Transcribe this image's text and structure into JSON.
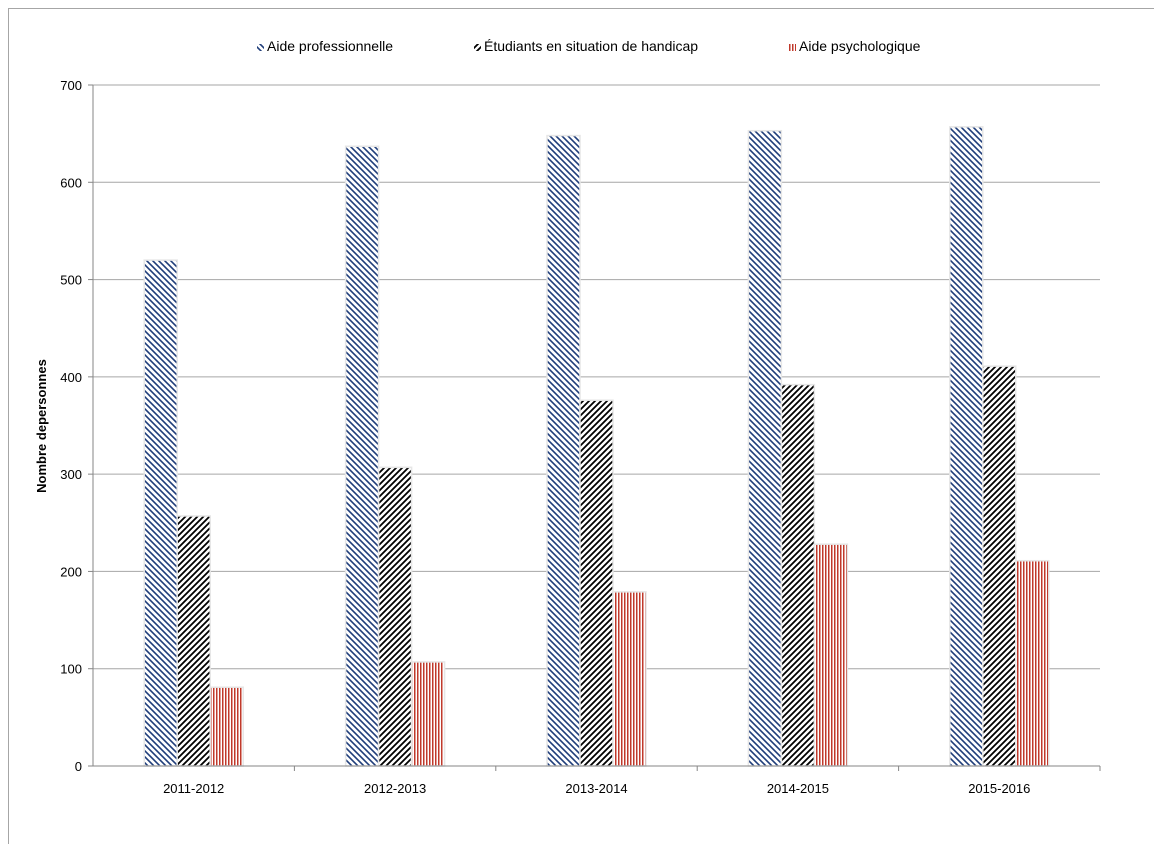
{
  "chart_data": {
    "type": "bar",
    "categories": [
      "2011-2012",
      "2012-2013",
      "2013-2014",
      "2014-2015",
      "2015-2016"
    ],
    "series": [
      {
        "name": "Aide professionnelle",
        "values": [
          520,
          637,
          648,
          653,
          657
        ],
        "color": "#1f3d7a",
        "pattern": "diag-down"
      },
      {
        "name": "Étudiants en situation de handicap",
        "values": [
          257,
          307,
          376,
          392,
          411
        ],
        "color": "#000000",
        "pattern": "diag-up"
      },
      {
        "name": "Aide psychologique",
        "values": [
          81,
          107,
          179,
          228,
          211
        ],
        "color": "#c0392b",
        "pattern": "vertical"
      }
    ],
    "ylabel": "Nombre depersonnes",
    "xlabel": "",
    "ylim": [
      0,
      700
    ],
    "yticks": [
      0,
      100,
      200,
      300,
      400,
      500,
      600,
      700
    ],
    "grid": true,
    "legend": "top-center"
  }
}
